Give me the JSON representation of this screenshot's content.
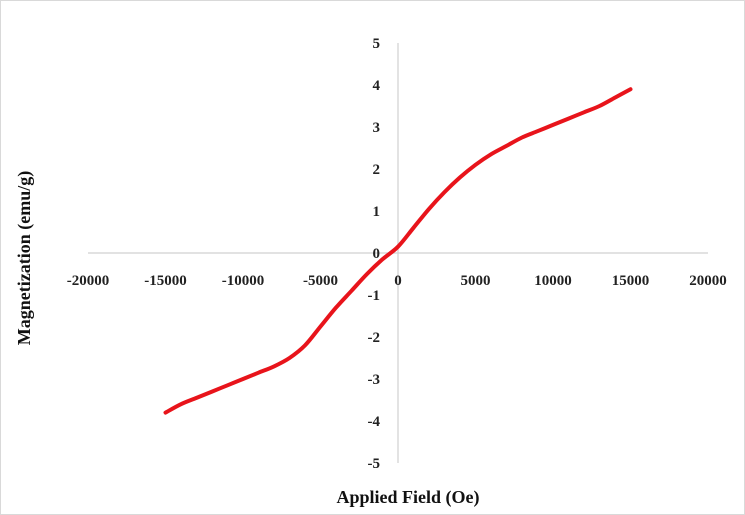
{
  "chart_data": {
    "type": "line",
    "title": "",
    "xlabel": "Applied Field (Oe)",
    "ylabel": "Magnetization (emu/g)",
    "xlim": [
      -20000,
      20000
    ],
    "ylim": [
      -5,
      5
    ],
    "x_ticks": [
      -20000,
      -15000,
      -10000,
      -5000,
      0,
      5000,
      10000,
      15000,
      20000
    ],
    "y_ticks": [
      -5,
      -4,
      -3,
      -2,
      -1,
      0,
      1,
      2,
      3,
      4,
      5
    ],
    "grid": false,
    "legend": "none",
    "series": [
      {
        "color": "#e8141b",
        "x": [
          -15000,
          -14000,
          -13000,
          -12000,
          -11000,
          -10000,
          -9000,
          -8000,
          -7000,
          -6000,
          -5000,
          -4000,
          -3000,
          -2000,
          -1000,
          0,
          1000,
          2000,
          3000,
          4000,
          5000,
          6000,
          7000,
          8000,
          9000,
          10000,
          11000,
          12000,
          13000,
          14000,
          15000
        ],
        "y": [
          -3.8,
          -3.6,
          -3.45,
          -3.3,
          -3.15,
          -3.0,
          -2.85,
          -2.7,
          -2.5,
          -2.2,
          -1.75,
          -1.3,
          -0.9,
          -0.5,
          -0.15,
          0.15,
          0.6,
          1.05,
          1.45,
          1.8,
          2.1,
          2.35,
          2.55,
          2.75,
          2.9,
          3.05,
          3.2,
          3.35,
          3.5,
          3.7,
          3.9
        ]
      }
    ]
  }
}
